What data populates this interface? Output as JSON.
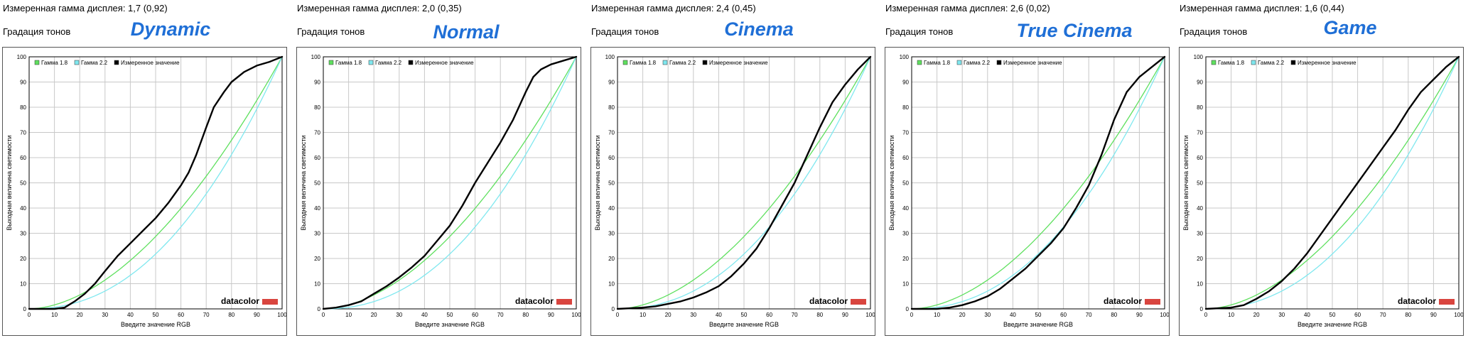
{
  "colors": {
    "gamma18": "#5fe05f",
    "gamma22": "#7fe8ef",
    "measured": "#000000",
    "title": "#1f6fd6",
    "brand_bar": "#d9453f"
  },
  "chart_data": [
    {
      "type": "line",
      "header": "Измеренная гамма дисплея: 1,7 (0,92)",
      "subheader": "Градация тонов",
      "title": "Dynamic",
      "xlabel": "Введите значение RGB",
      "ylabel": "Выходная величина светимости",
      "xlim": [
        0,
        100
      ],
      "ylim": [
        0,
        100
      ],
      "xticks": [
        0,
        10,
        20,
        30,
        40,
        50,
        60,
        70,
        80,
        90,
        100
      ],
      "yticks": [
        0,
        10,
        20,
        30,
        40,
        50,
        60,
        70,
        80,
        90,
        100
      ],
      "grid": true,
      "legend_position": "top-left",
      "brand": "datacolor",
      "series": [
        {
          "name": "Гамма 1.8",
          "function": "100*(x/100)^1.8"
        },
        {
          "name": "Гамма 2.2",
          "function": "100*(x/100)^2.2"
        },
        {
          "name": "Измеренное значение",
          "x": [
            0,
            10,
            14,
            18,
            22,
            26,
            30,
            35,
            40,
            45,
            50,
            55,
            60,
            63,
            66,
            70,
            73,
            77,
            80,
            85,
            90,
            95,
            100
          ],
          "y": [
            0,
            0,
            0.5,
            3,
            6,
            10,
            15,
            21,
            26,
            31,
            36,
            42,
            49,
            54,
            61,
            72,
            80,
            86,
            90,
            94,
            96.5,
            98,
            100
          ]
        }
      ]
    },
    {
      "type": "line",
      "header": "Измеренная гамма дисплея: 2,0 (0,35)",
      "subheader": "Градация тонов",
      "title": "Normal",
      "xlabel": "Введите значение RGB",
      "ylabel": "Выходная величина светимости",
      "xlim": [
        0,
        100
      ],
      "ylim": [
        0,
        100
      ],
      "xticks": [
        0,
        10,
        20,
        30,
        40,
        50,
        60,
        70,
        80,
        90,
        100
      ],
      "yticks": [
        0,
        10,
        20,
        30,
        40,
        50,
        60,
        70,
        80,
        90,
        100
      ],
      "grid": true,
      "legend_position": "top-left",
      "brand": "datacolor",
      "series": [
        {
          "name": "Гамма 1.8",
          "function": "100*(x/100)^1.8"
        },
        {
          "name": "Гамма 2.2",
          "function": "100*(x/100)^2.2"
        },
        {
          "name": "Измеренное значение",
          "x": [
            0,
            5,
            10,
            15,
            20,
            25,
            30,
            35,
            40,
            45,
            50,
            55,
            60,
            65,
            70,
            75,
            80,
            83,
            86,
            90,
            95,
            100
          ],
          "y": [
            0,
            0.5,
            1.5,
            3,
            6,
            9,
            12.5,
            16.5,
            21,
            27,
            33,
            41,
            50,
            58,
            66,
            75,
            86,
            92,
            95,
            97,
            98.5,
            100
          ]
        }
      ]
    },
    {
      "type": "line",
      "header": "Измеренная гамма дисплея: 2,4 (0,45)",
      "subheader": "Градация тонов",
      "title": "Cinema",
      "xlabel": "Введите значение RGB",
      "ylabel": "Выходная величина светимости",
      "xlim": [
        0,
        100
      ],
      "ylim": [
        0,
        100
      ],
      "xticks": [
        0,
        10,
        20,
        30,
        40,
        50,
        60,
        70,
        80,
        90,
        100
      ],
      "yticks": [
        0,
        10,
        20,
        30,
        40,
        50,
        60,
        70,
        80,
        90,
        100
      ],
      "grid": true,
      "legend_position": "top-left",
      "brand": "datacolor",
      "series": [
        {
          "name": "Гамма 1.8",
          "function": "100*(x/100)^1.8"
        },
        {
          "name": "Гамма 2.2",
          "function": "100*(x/100)^2.2"
        },
        {
          "name": "Измеренное значение",
          "x": [
            0,
            10,
            15,
            20,
            25,
            30,
            35,
            40,
            45,
            50,
            55,
            60,
            65,
            70,
            75,
            80,
            85,
            90,
            95,
            100
          ],
          "y": [
            0,
            0.5,
            1,
            2,
            3,
            4.5,
            6.5,
            9,
            13,
            18,
            24,
            32,
            41,
            50,
            61,
            72,
            82,
            89,
            95,
            100
          ]
        }
      ]
    },
    {
      "type": "line",
      "header": "Измеренная гамма дисплея: 2,6 (0,02)",
      "subheader": "Градация тонов",
      "title": "True Cinema",
      "xlabel": "Введите значение RGB",
      "ylabel": "Выходная величина светимости",
      "xlim": [
        0,
        100
      ],
      "ylim": [
        0,
        100
      ],
      "xticks": [
        0,
        10,
        20,
        30,
        40,
        50,
        60,
        70,
        80,
        90,
        100
      ],
      "yticks": [
        0,
        10,
        20,
        30,
        40,
        50,
        60,
        70,
        80,
        90,
        100
      ],
      "grid": true,
      "legend_position": "top-left",
      "brand": "datacolor",
      "series": [
        {
          "name": "Гамма 1.8",
          "function": "100*(x/100)^1.8"
        },
        {
          "name": "Гамма 2.2",
          "function": "100*(x/100)^2.2"
        },
        {
          "name": "Измеренное значение",
          "x": [
            0,
            10,
            15,
            20,
            25,
            30,
            35,
            40,
            45,
            50,
            55,
            60,
            65,
            70,
            75,
            80,
            85,
            90,
            95,
            100
          ],
          "y": [
            0,
            0,
            0.5,
            1.5,
            3,
            5,
            8,
            12,
            16,
            21,
            26,
            32,
            40,
            49,
            61,
            75,
            86,
            92,
            96,
            100
          ]
        }
      ]
    },
    {
      "type": "line",
      "header": "Измеренная гамма дисплея: 1,6 (0,44)",
      "subheader": "Градация тонов",
      "title": "Game",
      "xlabel": "Введите значение RGB",
      "ylabel": "Выходная величина светимости",
      "xlim": [
        0,
        100
      ],
      "ylim": [
        0,
        100
      ],
      "xticks": [
        0,
        10,
        20,
        30,
        40,
        50,
        60,
        70,
        80,
        90,
        100
      ],
      "yticks": [
        0,
        10,
        20,
        30,
        40,
        50,
        60,
        70,
        80,
        90,
        100
      ],
      "grid": true,
      "legend_position": "top-left",
      "brand": "datacolor",
      "series": [
        {
          "name": "Гамма 1.8",
          "function": "100*(x/100)^1.8"
        },
        {
          "name": "Гамма 2.2",
          "function": "100*(x/100)^2.2"
        },
        {
          "name": "Измеренное значение",
          "x": [
            0,
            10,
            15,
            20,
            25,
            30,
            35,
            40,
            45,
            50,
            55,
            60,
            65,
            70,
            75,
            80,
            85,
            90,
            95,
            100
          ],
          "y": [
            0,
            0.5,
            1.5,
            4,
            7,
            11,
            16,
            22,
            29,
            36,
            43,
            50,
            57,
            64,
            71,
            79,
            86,
            91,
            96,
            100
          ]
        }
      ]
    }
  ]
}
